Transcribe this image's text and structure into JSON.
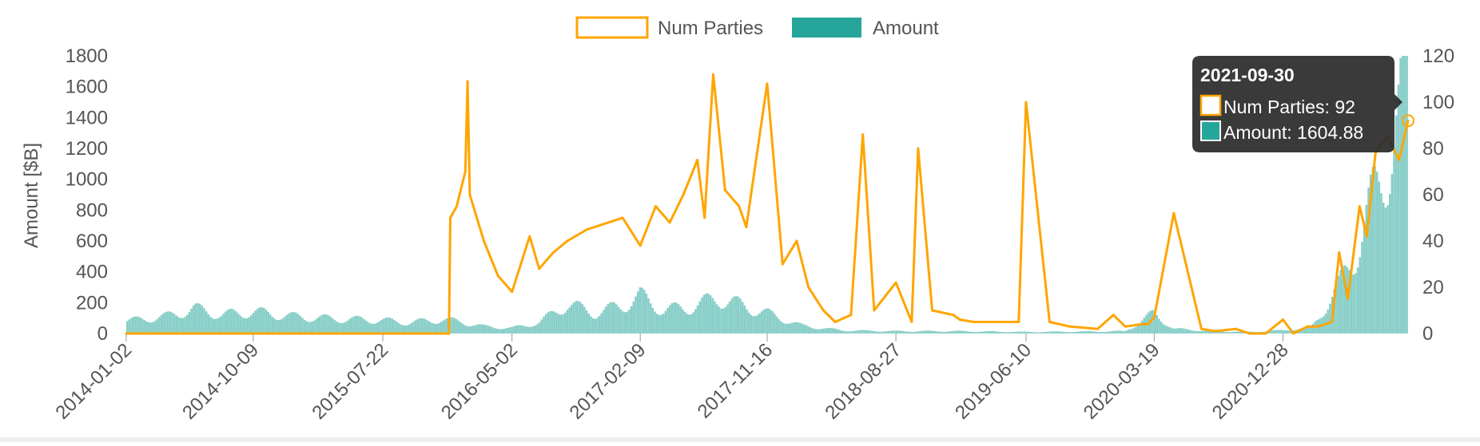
{
  "chart_data": {
    "type": "bar",
    "legend": {
      "position": "top",
      "items": [
        {
          "label": "Num Parties",
          "style": "line",
          "color": "#ffa500"
        },
        {
          "label": "Amount",
          "style": "bar",
          "color": "#26a69a"
        }
      ]
    },
    "y_left": {
      "label": "Amount [$B]",
      "ticks": [
        0,
        200,
        400,
        600,
        800,
        1000,
        1200,
        1400,
        1600,
        1800
      ],
      "range": [
        0,
        1800
      ]
    },
    "y_right": {
      "label": "",
      "ticks": [
        0,
        20,
        40,
        60,
        80,
        100,
        120
      ],
      "range": [
        0,
        120
      ]
    },
    "x_axis": {
      "start": "2014-01-02",
      "end": "2021-09-30",
      "tick_labels": [
        "2014-01-02",
        "2014-10-09",
        "2015-07-22",
        "2016-05-02",
        "2017-02-09",
        "2017-11-16",
        "2018-08-27",
        "2019-06-10",
        "2020-03-19",
        "2020-12-28"
      ],
      "label_rotation_deg": -45
    },
    "series": [
      {
        "name": "Amount",
        "type": "bar",
        "axis": "left",
        "color": "#26a69a",
        "x": [
          "2014-01-02",
          "2014-04-01",
          "2014-06-01",
          "2014-08-01",
          "2014-10-09",
          "2015-01-01",
          "2015-04-01",
          "2015-07-22",
          "2015-09-15",
          "2015-12-01",
          "2016-01-10",
          "2016-03-01",
          "2016-05-02",
          "2016-07-01",
          "2016-09-01",
          "2016-11-01",
          "2017-01-01",
          "2017-02-09",
          "2017-04-01",
          "2017-06-01",
          "2017-08-01",
          "2017-10-01",
          "2017-11-16",
          "2018-02-01",
          "2018-05-01",
          "2018-08-27",
          "2019-01-01",
          "2019-06-10",
          "2019-10-01",
          "2020-01-15",
          "2020-03-19",
          "2020-05-01",
          "2020-08-01",
          "2020-10-15",
          "2020-12-28",
          "2021-03-01",
          "2021-05-01",
          "2021-06-15",
          "2021-08-01",
          "2021-09-30"
        ],
        "values": [
          80,
          110,
          160,
          120,
          140,
          110,
          95,
          85,
          70,
          90,
          75,
          45,
          35,
          70,
          190,
          130,
          180,
          240,
          150,
          170,
          230,
          170,
          130,
          50,
          20,
          15,
          15,
          10,
          12,
          15,
          130,
          30,
          15,
          10,
          20,
          40,
          300,
          600,
          1000,
          1604.88
        ]
      },
      {
        "name": "Num Parties",
        "type": "line",
        "axis": "right",
        "color": "#ffa500",
        "x": [
          "2014-01-02",
          "2015-07-22",
          "2015-12-15",
          "2015-12-18",
          "2016-01-01",
          "2016-01-20",
          "2016-01-25",
          "2016-01-30",
          "2016-03-01",
          "2016-04-01",
          "2016-05-02",
          "2016-06-10",
          "2016-07-01",
          "2016-08-01",
          "2016-09-01",
          "2016-10-15",
          "2016-12-01",
          "2017-01-01",
          "2017-02-09",
          "2017-03-15",
          "2017-04-15",
          "2017-05-15",
          "2017-06-15",
          "2017-07-01",
          "2017-07-20",
          "2017-08-15",
          "2017-09-15",
          "2017-10-01",
          "2017-11-16",
          "2017-12-20",
          "2018-01-20",
          "2018-02-15",
          "2018-03-20",
          "2018-04-15",
          "2018-05-20",
          "2018-06-15",
          "2018-07-10",
          "2018-08-27",
          "2018-10-01",
          "2018-10-15",
          "2018-11-15",
          "2019-01-01",
          "2019-01-15",
          "2019-02-15",
          "2019-04-01",
          "2019-05-15",
          "2019-05-25",
          "2019-06-10",
          "2019-08-01",
          "2019-09-15",
          "2019-11-15",
          "2019-12-20",
          "2020-01-15",
          "2020-02-20",
          "2020-03-05",
          "2020-03-19",
          "2020-05-01",
          "2020-07-01",
          "2020-08-01",
          "2020-09-15",
          "2020-10-15",
          "2020-11-20",
          "2020-12-28",
          "2021-01-20",
          "2021-02-20",
          "2021-03-15",
          "2021-04-15",
          "2021-05-01",
          "2021-05-20",
          "2021-06-15",
          "2021-07-01",
          "2021-07-20",
          "2021-08-15",
          "2021-09-10",
          "2021-09-30"
        ],
        "values": [
          0,
          0,
          0,
          50,
          55,
          70,
          109,
          60,
          40,
          25,
          18,
          42,
          28,
          35,
          40,
          45,
          48,
          50,
          38,
          55,
          48,
          60,
          75,
          50,
          112,
          62,
          55,
          46,
          108,
          30,
          40,
          20,
          10,
          5,
          8,
          86,
          10,
          22,
          5,
          80,
          10,
          8,
          6,
          5,
          5,
          5,
          5,
          100,
          5,
          3,
          2,
          8,
          3,
          4,
          4,
          7,
          52,
          2,
          1,
          2,
          0,
          0,
          6,
          0,
          3,
          3,
          5,
          35,
          15,
          55,
          42,
          78,
          85,
          75,
          92
        ]
      }
    ],
    "tooltip": {
      "title": "2021-09-30",
      "rows": [
        {
          "label": "Num Parties: 92",
          "color": "#ffa500"
        },
        {
          "label": "Amount: 1604.88",
          "color": "#26a69a"
        }
      ]
    },
    "grid": false
  }
}
